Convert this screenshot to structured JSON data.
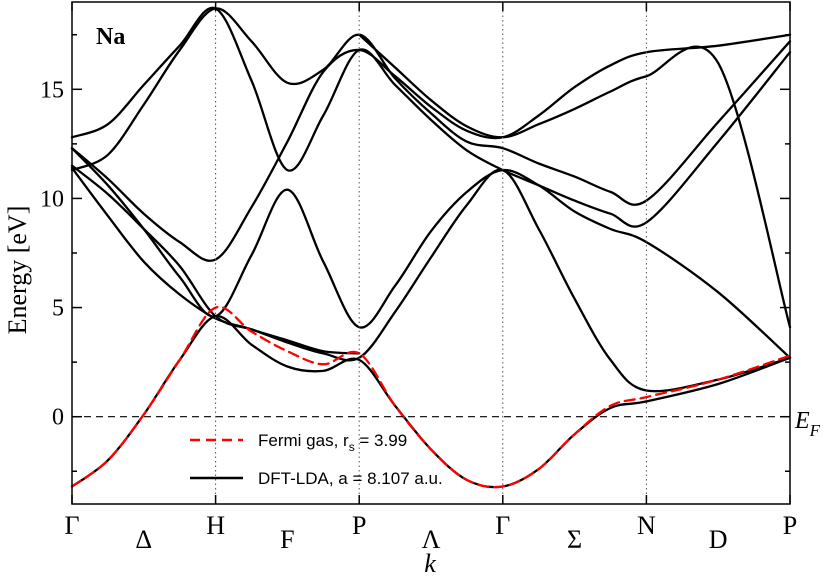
{
  "chart_data": {
    "type": "line",
    "title": "Na",
    "xlabel": "k",
    "ylabel": "Energy [eV]",
    "ylim": [
      -4,
      19
    ],
    "yticks": [
      0,
      5,
      10,
      15
    ],
    "grid": false,
    "legend_position": "bottom-left",
    "fermi_label": {
      "main": "E",
      "sub": "F"
    },
    "x": [
      0,
      1,
      2,
      3,
      4,
      5,
      6
    ],
    "high_symmetry_points": [
      {
        "label": "Γ",
        "x": 0
      },
      {
        "label": "H",
        "x": 1
      },
      {
        "label": "P",
        "x": 2
      },
      {
        "label": "Γ",
        "x": 3
      },
      {
        "label": "N",
        "x": 4
      },
      {
        "label": "P",
        "x": 5
      }
    ],
    "segment_labels": [
      {
        "label": "Δ",
        "x": 0.5
      },
      {
        "label": "F",
        "x": 1.5
      },
      {
        "label": "Λ",
        "x": 2.5
      },
      {
        "label": "Σ",
        "x": 3.5
      },
      {
        "label": "D",
        "x": 4.5
      }
    ],
    "fermi_level": 0,
    "series": [
      {
        "name": "Fermi gas, r",
        "name_sub": "s",
        "name_rest": " = 3.99",
        "style": "dashed",
        "color": "#ff0000",
        "bands": [
          [
            [
              0,
              -3.2
            ],
            [
              0.25,
              -2.0
            ],
            [
              0.5,
              0.1
            ],
            [
              0.75,
              2.6
            ],
            [
              1,
              5.0
            ],
            [
              1.25,
              3.9
            ],
            [
              1.5,
              3.0
            ],
            [
              1.75,
              2.4
            ],
            [
              2,
              2.9
            ],
            [
              2.25,
              0.5
            ],
            [
              2.5,
              -1.5
            ],
            [
              2.75,
              -2.9
            ],
            [
              3,
              -3.2
            ],
            [
              3.25,
              -2.4
            ],
            [
              3.5,
              -0.8
            ],
            [
              3.75,
              0.5
            ],
            [
              4,
              0.9
            ],
            [
              4.5,
              1.7
            ],
            [
              5,
              2.8
            ]
          ]
        ]
      },
      {
        "name": "DFT-LDA, a = 8.107 a.u.",
        "style": "solid",
        "color": "#000000",
        "bands": [
          [
            [
              0,
              -3.2
            ],
            [
              0.25,
              -2.0
            ],
            [
              0.5,
              0.1
            ],
            [
              0.75,
              2.6
            ],
            [
              1,
              4.6
            ],
            [
              1.25,
              3.3
            ],
            [
              1.5,
              2.3
            ],
            [
              1.75,
              2.1
            ],
            [
              2,
              2.6
            ],
            [
              2.25,
              0.5
            ],
            [
              2.5,
              -1.5
            ],
            [
              2.75,
              -2.9
            ],
            [
              3,
              -3.2
            ],
            [
              3.25,
              -2.4
            ],
            [
              3.5,
              -0.8
            ],
            [
              3.75,
              0.4
            ],
            [
              4,
              0.7
            ],
            [
              4.5,
              1.5
            ],
            [
              5,
              2.7
            ]
          ],
          [
            [
              0,
              11.4
            ],
            [
              0.25,
              9.2
            ],
            [
              0.5,
              7.1
            ],
            [
              0.75,
              5.6
            ],
            [
              1,
              4.5
            ],
            [
              1.25,
              4.0
            ],
            [
              1.5,
              3.4
            ],
            [
              1.75,
              2.9
            ],
            [
              2,
              2.7
            ],
            [
              2.25,
              4.8
            ],
            [
              2.5,
              7.3
            ],
            [
              2.75,
              9.7
            ],
            [
              3,
              11.3
            ],
            [
              3.25,
              8.6
            ],
            [
              3.5,
              5.4
            ],
            [
              3.75,
              2.6
            ],
            [
              4,
              1.2
            ],
            [
              4.5,
              1.7
            ],
            [
              5,
              2.7
            ]
          ],
          [
            [
              0,
              11.5
            ],
            [
              0.25,
              10.2
            ],
            [
              0.5,
              8.6
            ],
            [
              0.75,
              6.9
            ],
            [
              1,
              4.6
            ],
            [
              1.25,
              4.0
            ],
            [
              1.5,
              3.5
            ],
            [
              1.75,
              3.0
            ],
            [
              2,
              2.9
            ]
          ],
          [
            [
              0,
              12.3
            ],
            [
              0.25,
              10.6
            ],
            [
              0.5,
              8.6
            ],
            [
              0.75,
              6.4
            ],
            [
              1,
              4.6
            ],
            [
              1.25,
              7.4
            ],
            [
              1.5,
              10.4
            ],
            [
              1.75,
              7.1
            ],
            [
              2,
              4.1
            ],
            [
              2.25,
              6.0
            ],
            [
              2.5,
              8.5
            ],
            [
              2.75,
              10.3
            ],
            [
              3,
              11.3
            ],
            [
              3.25,
              10.6
            ],
            [
              3.5,
              9.4
            ],
            [
              3.75,
              8.6
            ],
            [
              4,
              8.0
            ],
            [
              4.5,
              5.7
            ],
            [
              5,
              2.7
            ]
          ],
          [
            [
              0,
              12.3
            ],
            [
              0.25,
              10.9
            ],
            [
              0.5,
              9.3
            ],
            [
              0.75,
              8.0
            ],
            [
              1,
              7.2
            ],
            [
              1.25,
              9.6
            ],
            [
              1.5,
              12.6
            ],
            [
              1.75,
              15.8
            ],
            [
              2,
              16.8
            ],
            [
              2.25,
              15.6
            ],
            [
              2.5,
              14.2
            ],
            [
              2.75,
              13.1
            ],
            [
              3,
              12.8
            ],
            [
              3.25,
              13.8
            ],
            [
              3.5,
              15.1
            ],
            [
              3.75,
              16.1
            ],
            [
              4,
              16.7
            ],
            [
              4.5,
              17.0
            ],
            [
              5,
              17.5
            ]
          ],
          [
            [
              0,
              11.3
            ],
            [
              0.25,
              12.0
            ],
            [
              0.5,
              14.3
            ],
            [
              0.75,
              16.8
            ],
            [
              1,
              18.7
            ],
            [
              1.25,
              17.2
            ],
            [
              1.5,
              15.3
            ],
            [
              1.75,
              15.9
            ],
            [
              2,
              17.5
            ],
            [
              2.25,
              15.5
            ],
            [
              2.5,
              13.9
            ],
            [
              2.75,
              12.6
            ],
            [
              3,
              12.3
            ],
            [
              3.25,
              11.6
            ],
            [
              3.5,
              11.0
            ],
            [
              3.75,
              10.3
            ],
            [
              4,
              9.9
            ],
            [
              4.5,
              13.5
            ],
            [
              5,
              17.2
            ]
          ],
          [
            [
              0,
              12.8
            ],
            [
              0.25,
              13.4
            ],
            [
              0.5,
              15.2
            ],
            [
              0.75,
              17.0
            ],
            [
              1,
              18.7
            ],
            [
              1.25,
              15.4
            ],
            [
              1.5,
              11.3
            ],
            [
              1.75,
              13.8
            ],
            [
              2,
              16.8
            ],
            [
              2.25,
              15.2
            ],
            [
              2.5,
              13.6
            ],
            [
              2.75,
              12.2
            ],
            [
              3,
              11.3
            ],
            [
              3.25,
              10.6
            ],
            [
              3.5,
              9.9
            ],
            [
              3.75,
              9.3
            ],
            [
              4,
              8.9
            ],
            [
              4.5,
              12.6
            ],
            [
              5,
              16.7
            ]
          ],
          [
            [
              2,
              17.5
            ],
            [
              2.25,
              16.0
            ],
            [
              2.5,
              14.5
            ],
            [
              2.75,
              13.3
            ],
            [
              3,
              12.8
            ],
            [
              3.25,
              13.4
            ],
            [
              3.5,
              14.1
            ],
            [
              3.75,
              14.9
            ],
            [
              4,
              15.6
            ],
            [
              4.5,
              16.2
            ],
            [
              5,
              4.1
            ]
          ]
        ]
      }
    ]
  }
}
